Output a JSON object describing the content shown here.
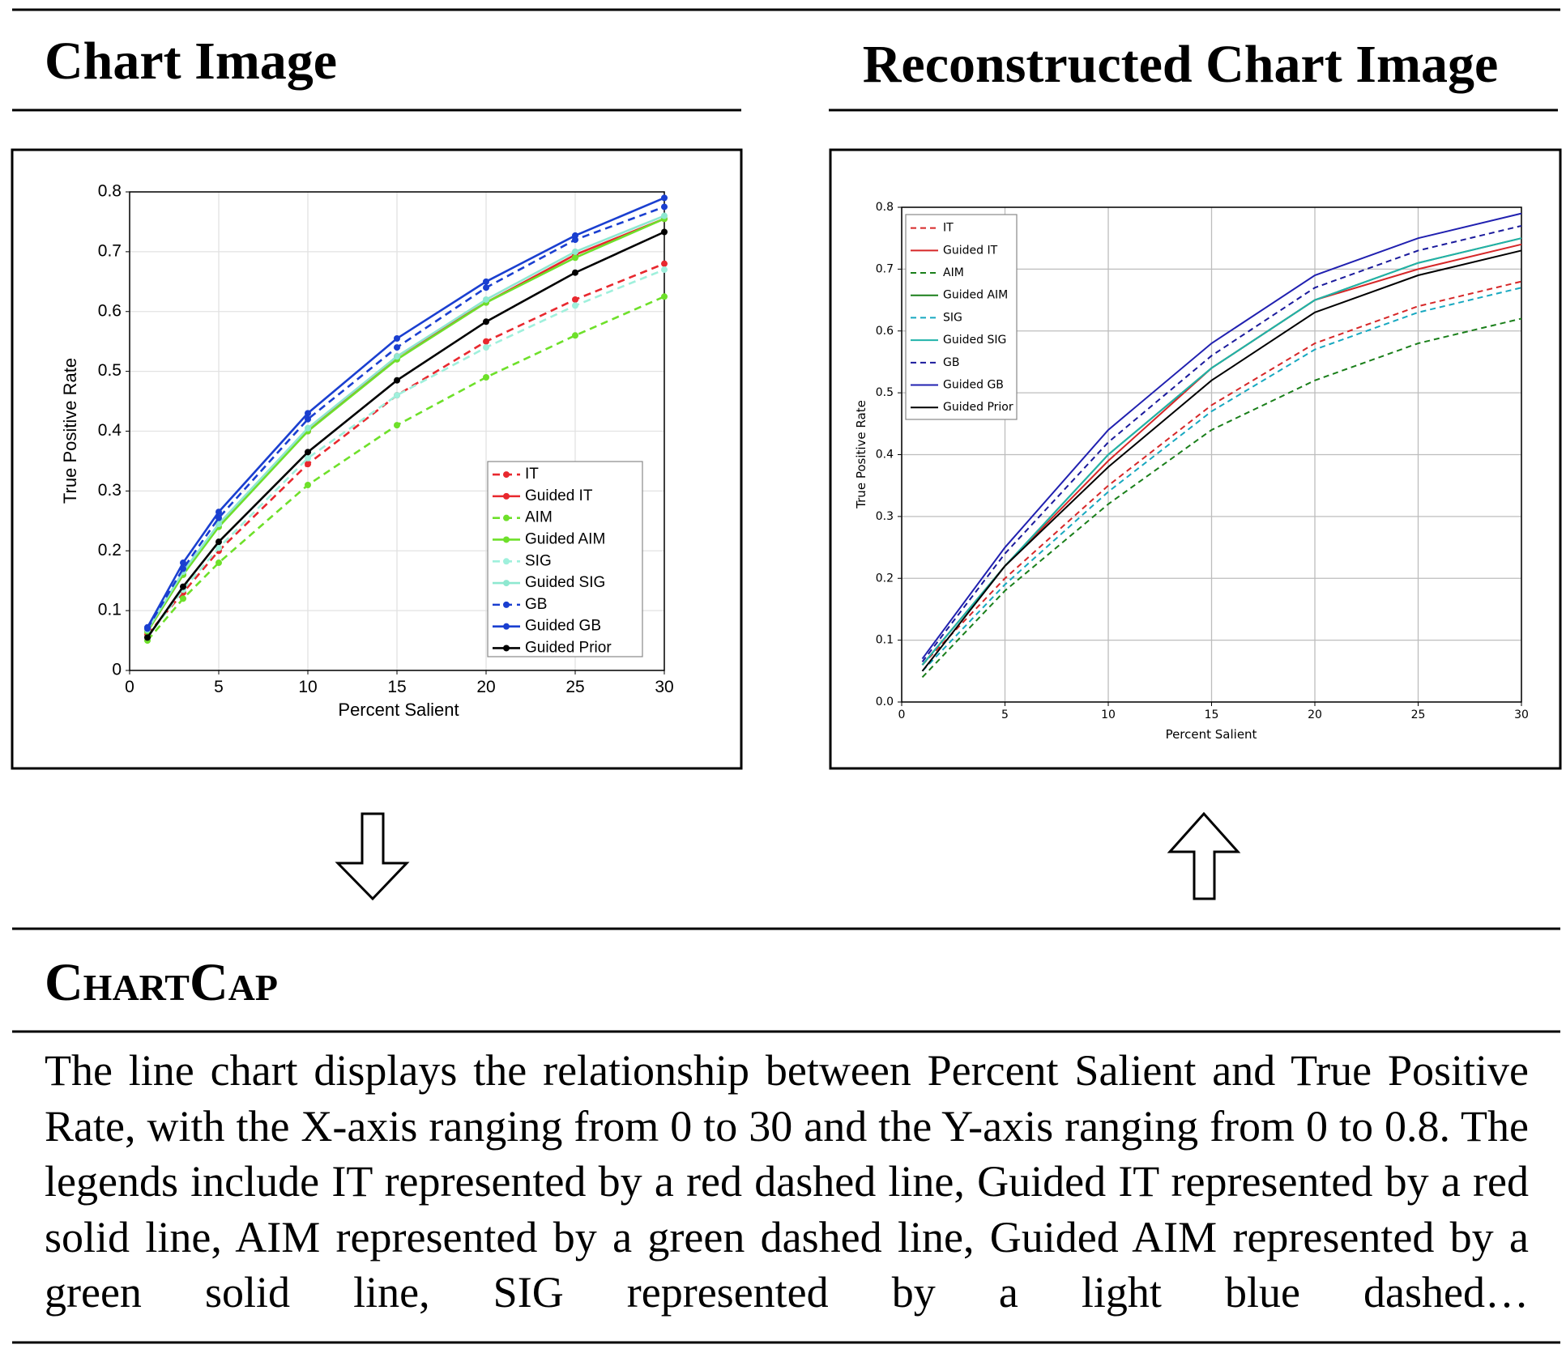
{
  "headers": {
    "left": "Chart Image",
    "right": "Reconstructed Chart Image",
    "caption_title": "ChartCap"
  },
  "caption": "The line chart displays the relationship between Percent Salient and True Positive Rate, with the X-axis ranging from 0 to 30 and the Y-axis ranging from 0 to 0.8. The legends include IT represented by a red dashed line, Guided IT represented by a red solid line, AIM represented by a green dashed line, Guided AIM represented by a green solid line, SIG represented by a light blue dashed…",
  "chart_data": [
    {
      "type": "line",
      "x_label": "Percent Salient",
      "y_label": "True Positive Rate",
      "x": [
        1,
        3,
        5,
        10,
        15,
        20,
        25,
        30
      ],
      "xlim": [
        0,
        30
      ],
      "ylim": [
        0,
        0.8
      ],
      "xticks": [
        0,
        5,
        10,
        15,
        20,
        25,
        30
      ],
      "yticks": [
        0,
        0.1,
        0.2,
        0.3,
        0.4,
        0.5,
        0.6,
        0.7,
        0.8
      ],
      "grid": true,
      "markers": true,
      "legend": "lower right",
      "series": [
        {
          "name": "IT",
          "color": "#e8282e",
          "style": "dashed",
          "values": [
            0.06,
            0.13,
            0.2,
            0.345,
            0.46,
            0.55,
            0.62,
            0.68
          ]
        },
        {
          "name": "Guided IT",
          "color": "#e8282e",
          "style": "solid",
          "values": [
            0.065,
            0.16,
            0.245,
            0.4,
            0.525,
            0.615,
            0.695,
            0.755
          ]
        },
        {
          "name": "AIM",
          "color": "#6ee02a",
          "style": "dashed",
          "values": [
            0.05,
            0.12,
            0.18,
            0.31,
            0.41,
            0.49,
            0.56,
            0.625
          ]
        },
        {
          "name": "Guided AIM",
          "color": "#6ee02a",
          "style": "solid",
          "values": [
            0.065,
            0.16,
            0.24,
            0.4,
            0.52,
            0.615,
            0.69,
            0.755
          ]
        },
        {
          "name": "SIG",
          "color": "#9ff0dc",
          "style": "dashed",
          "values": [
            0.055,
            0.135,
            0.205,
            0.355,
            0.46,
            0.54,
            0.61,
            0.67
          ]
        },
        {
          "name": "Guided SIG",
          "color": "#8ee8d0",
          "style": "solid",
          "values": [
            0.068,
            0.165,
            0.245,
            0.405,
            0.525,
            0.62,
            0.7,
            0.76
          ]
        },
        {
          "name": "GB",
          "color": "#1a3fd0",
          "style": "dashed",
          "values": [
            0.07,
            0.17,
            0.255,
            0.42,
            0.54,
            0.64,
            0.72,
            0.775
          ]
        },
        {
          "name": "Guided GB",
          "color": "#1a3fd0",
          "style": "solid",
          "values": [
            0.072,
            0.18,
            0.265,
            0.43,
            0.555,
            0.65,
            0.727,
            0.79
          ]
        },
        {
          "name": "Guided Prior",
          "color": "#000000",
          "style": "solid",
          "values": [
            0.055,
            0.14,
            0.215,
            0.365,
            0.485,
            0.583,
            0.665,
            0.733
          ]
        }
      ]
    },
    {
      "type": "line",
      "x_label": "Percent Salient",
      "y_label": "True Positive Rate",
      "x": [
        1,
        5,
        10,
        15,
        20,
        25,
        30
      ],
      "xlim": [
        0,
        30
      ],
      "ylim": [
        0,
        0.8
      ],
      "xticks": [
        0,
        5,
        10,
        15,
        20,
        25,
        30
      ],
      "yticks": [
        {
          "value": 0,
          "label": "0.0"
        },
        0.1,
        0.2,
        0.3,
        0.4,
        0.5,
        0.6,
        0.7,
        0.8
      ],
      "grid": true,
      "markers": false,
      "legend": "upper left",
      "series": [
        {
          "name": "IT",
          "color": "#d62728",
          "style": "dashed",
          "values": [
            0.06,
            0.2,
            0.35,
            0.48,
            0.58,
            0.64,
            0.68
          ]
        },
        {
          "name": "Guided IT",
          "color": "#d62728",
          "style": "solid",
          "values": [
            0.06,
            0.22,
            0.39,
            0.54,
            0.65,
            0.7,
            0.74
          ]
        },
        {
          "name": "AIM",
          "color": "#1a7f1a",
          "style": "dashed",
          "values": [
            0.04,
            0.18,
            0.32,
            0.44,
            0.52,
            0.58,
            0.62
          ]
        },
        {
          "name": "Guided AIM",
          "color": "#1a7f1a",
          "style": "solid",
          "values": [
            0.06,
            0.22,
            0.4,
            0.54,
            0.65,
            0.71,
            0.75
          ]
        },
        {
          "name": "SIG",
          "color": "#17a8c0",
          "style": "dashed",
          "values": [
            0.05,
            0.19,
            0.34,
            0.47,
            0.57,
            0.63,
            0.67
          ]
        },
        {
          "name": "Guided SIG",
          "color": "#20b2aa",
          "style": "solid",
          "values": [
            0.06,
            0.22,
            0.4,
            0.54,
            0.65,
            0.71,
            0.75
          ]
        },
        {
          "name": "GB",
          "color": "#1a1a9c",
          "style": "dashed",
          "values": [
            0.065,
            0.24,
            0.42,
            0.56,
            0.67,
            0.73,
            0.77
          ]
        },
        {
          "name": "Guided GB",
          "color": "#2020b0",
          "style": "solid",
          "values": [
            0.07,
            0.25,
            0.44,
            0.58,
            0.69,
            0.75,
            0.79
          ]
        },
        {
          "name": "Guided Prior",
          "color": "#000000",
          "style": "solid",
          "values": [
            0.05,
            0.22,
            0.38,
            0.52,
            0.63,
            0.69,
            0.73
          ]
        }
      ]
    }
  ]
}
